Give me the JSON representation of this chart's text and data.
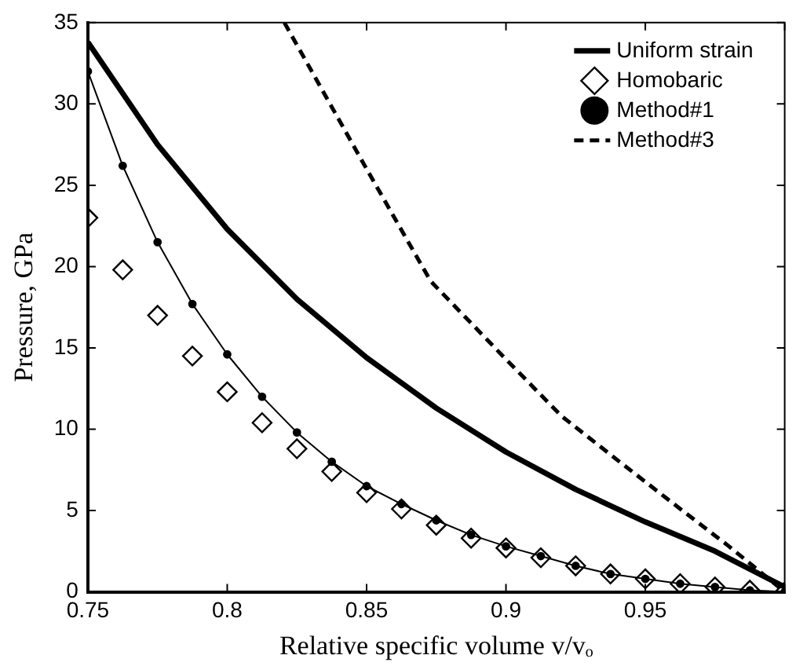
{
  "chart_data": {
    "type": "line",
    "xlabel": "Relative specific volume v/vₒ",
    "ylabel": "Pressure, GPa",
    "xlim": [
      0.75,
      1
    ],
    "xticks": [
      0.75,
      0.8,
      0.85,
      0.9,
      0.95,
      {
        "value": 1,
        "label": null
      }
    ],
    "ylim": [
      0,
      35
    ],
    "yticks": [
      0,
      5,
      10,
      15,
      20,
      25,
      30,
      35
    ],
    "grid": false,
    "legend": "top right",
    "series": [
      {
        "name": "Uniform strain",
        "color": "#000000",
        "marker": "none",
        "line_style": "solid",
        "x": [
          0.75,
          0.775,
          0.8,
          0.825,
          0.85,
          0.875,
          0.9,
          0.925,
          0.95,
          0.975,
          1.0
        ],
        "values": [
          33.8,
          27.5,
          22.3,
          18,
          14.4,
          11.3,
          8.6,
          6.3,
          4.3,
          2.5,
          0.3
        ]
      },
      {
        "name": "Homobaric",
        "type": "scatter",
        "color": "#000000",
        "marker": "diamond",
        "x": [
          0.75,
          0.7625,
          0.775,
          0.7875,
          0.8,
          0.8125,
          0.825,
          0.8375,
          0.85,
          0.8625,
          0.875,
          0.8875,
          0.9,
          0.9125,
          0.925,
          0.9375,
          0.95,
          0.9625,
          0.975,
          0.9875,
          1.0
        ],
        "values": [
          23,
          19.8,
          17,
          14.5,
          12.3,
          10.4,
          8.8,
          7.4,
          6.1,
          5.1,
          4.1,
          3.3,
          2.7,
          2.1,
          1.6,
          1.1,
          0.8,
          0.5,
          0.3,
          0.1,
          0
        ]
      },
      {
        "name": "Method#1",
        "color": "#000000",
        "marker": "circle",
        "line_style": "solid",
        "x": [
          0.75,
          0.7625,
          0.775,
          0.7875,
          0.8,
          0.8125,
          0.825,
          0.8375,
          0.85,
          0.8625,
          0.875,
          0.8875,
          0.9,
          0.9125,
          0.925,
          0.9375,
          0.95,
          0.9625,
          0.975,
          0.9875,
          1.0
        ],
        "values": [
          32,
          26.2,
          21.5,
          17.7,
          14.6,
          12,
          9.8,
          8,
          6.5,
          5.4,
          4.4,
          3.5,
          2.8,
          2.2,
          1.6,
          1.1,
          0.8,
          0.5,
          0.3,
          0.1,
          0
        ]
      },
      {
        "name": "Method#3",
        "color": "#000000",
        "marker": "none",
        "line_style": "dashed",
        "x": [
          0.8205,
          0.85,
          0.873,
          0.9,
          0.92,
          0.94,
          0.958,
          0.98,
          1.0
        ],
        "values": [
          35,
          26,
          19.1,
          14.3,
          10.8,
          8.1,
          5.7,
          2.8,
          0
        ]
      }
    ]
  }
}
